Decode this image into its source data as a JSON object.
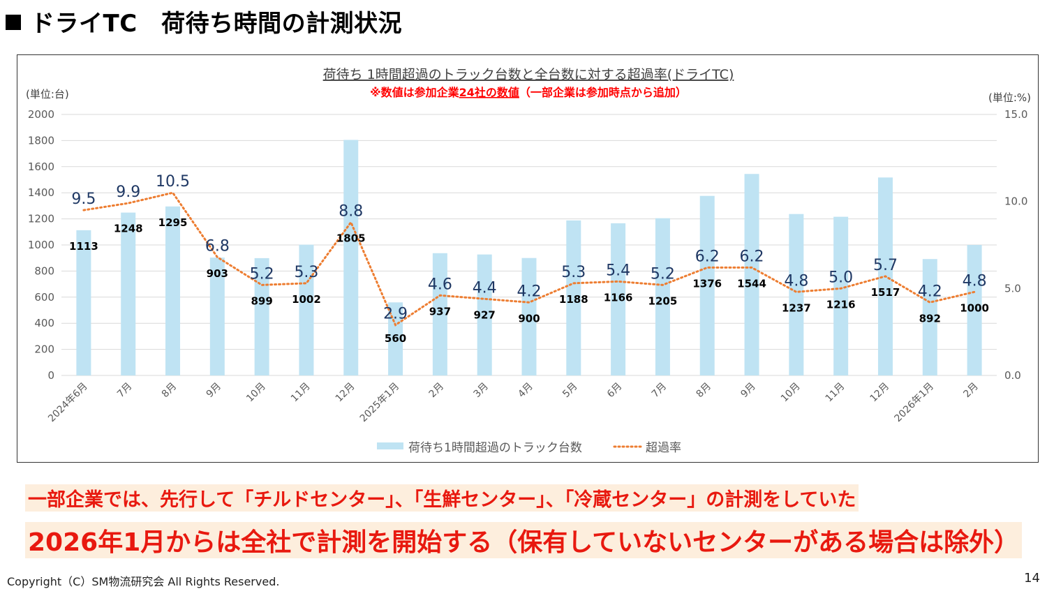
{
  "page": {
    "title": "ドライTC　荷待ち時間の計測状況",
    "note_line1": "一部企業では、先行して「チルドセンター」、「生鮮センター」、「冷蔵センター」の計測をしていた",
    "note_line2": "2026年1月からは全社で計測を開始する（保有していないセンターがある場合は除外）",
    "copyright": "Copyright（C）SM物流研究会 All Rights Reserved.",
    "page_number": "14"
  },
  "chart_data": {
    "type": "bar+line",
    "title": "荷待ち 1時間超過のトラック台数と全台数に対する超過率(ドライTC)",
    "subtitle_prefix": "※数値は参加企業",
    "subtitle_emph": "24社の数値",
    "subtitle_suffix": "（一部企業は参加時点から追加）",
    "left_unit": "(単位:台)",
    "right_unit": "(単位:%)",
    "categories": [
      "2024年6月",
      "7月",
      "8月",
      "9月",
      "10月",
      "11月",
      "12月",
      "2025年1月",
      "2月",
      "3月",
      "4月",
      "5月",
      "6月",
      "7月",
      "8月",
      "9月",
      "10月",
      "11月",
      "12月",
      "2026年1月",
      "2月"
    ],
    "series": [
      {
        "name": "荷待ち1時間超過のトラック台数",
        "axis": "left",
        "values": [
          1113,
          1248,
          1295,
          903,
          899,
          1002,
          1805,
          560,
          937,
          927,
          900,
          1188,
          1166,
          1205,
          1376,
          1544,
          1237,
          1216,
          1517,
          892,
          1000
        ],
        "color": "#bfe3f3"
      },
      {
        "name": "超過率",
        "axis": "right",
        "values": [
          9.5,
          9.9,
          10.5,
          6.8,
          5.2,
          5.3,
          8.8,
          2.9,
          4.6,
          4.4,
          4.2,
          5.3,
          5.4,
          5.2,
          6.2,
          6.2,
          4.8,
          5.0,
          5.7,
          4.2,
          4.8
        ],
        "value_labels": [
          "9.5",
          "9.9",
          "10.5",
          "6.8",
          "5.2",
          "5.3",
          "8.8",
          "2.9",
          "4.6",
          "4.4",
          "4.2",
          "5.3",
          "5.4",
          "5.2",
          "6.2",
          "6.2",
          "4.8",
          "5.0",
          "5.7",
          "4.2",
          "4.8"
        ],
        "color": "#ed7d31"
      }
    ],
    "ylim_left": [
      0,
      2000
    ],
    "left_ticks": [
      0,
      200,
      400,
      600,
      800,
      1000,
      1200,
      1400,
      1600,
      1800,
      2000
    ],
    "ylim_right": [
      0,
      15
    ],
    "right_ticks": [
      "0.0",
      "5.0",
      "10.0",
      "15.0"
    ],
    "grid": true,
    "legend": "bottom-center"
  }
}
